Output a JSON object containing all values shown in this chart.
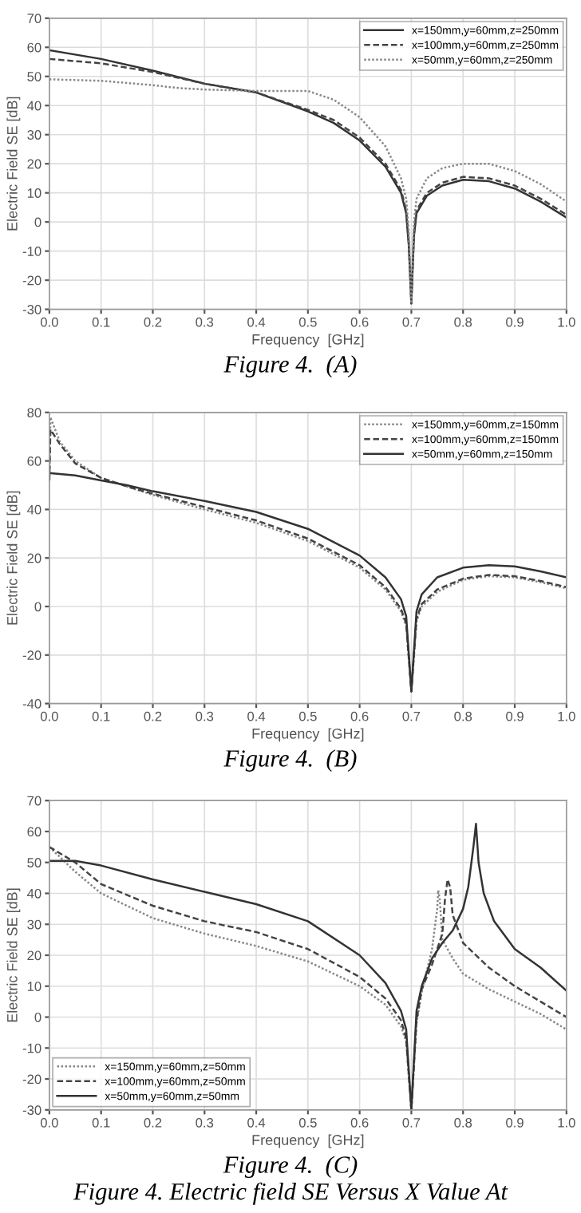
{
  "chart_data": [
    {
      "type": "line",
      "xlabel": "Frequency  [GHz]",
      "ylabel": "Electric Field SE [dB]",
      "annotations": [
        "Figure 4.  (A)"
      ],
      "xlim": [
        0,
        1
      ],
      "ylim": [
        -30,
        70
      ],
      "xticks": [
        {
          "value": 0,
          "label": "0.0"
        },
        {
          "value": 0.1,
          "label": "0.1"
        },
        {
          "value": 0.2,
          "label": "0.2"
        },
        {
          "value": 0.3,
          "label": "0.3"
        },
        {
          "value": 0.4,
          "label": "0.4"
        },
        {
          "value": 0.5,
          "label": "0.5"
        },
        {
          "value": 0.6,
          "label": "0.6"
        },
        {
          "value": 0.7,
          "label": "0.7"
        },
        {
          "value": 0.8,
          "label": "0.8"
        },
        {
          "value": 0.9,
          "label": "0.9"
        },
        {
          "value": 1,
          "label": "1.0"
        }
      ],
      "yticks": [
        -30,
        -20,
        -10,
        0,
        10,
        20,
        30,
        40,
        50,
        60,
        70
      ],
      "grid": true,
      "legend": "top right",
      "marker": "none",
      "series": [
        {
          "name": "x=150mm,y=60mm,z=250mm",
          "color": "#333333",
          "line_style": "solid",
          "x": [
            0,
            0.1,
            0.2,
            0.3,
            0.4,
            0.5,
            0.55,
            0.6,
            0.65,
            0.68,
            0.69,
            0.695,
            0.7,
            0.705,
            0.71,
            0.73,
            0.76,
            0.8,
            0.85,
            0.9,
            0.95,
            1.0
          ],
          "values": [
            59,
            56,
            52,
            47.5,
            44.5,
            38,
            34,
            28,
            19,
            10,
            3,
            -8,
            -28,
            -5,
            3,
            9,
            12.5,
            14.5,
            14,
            11.5,
            7,
            1.5
          ]
        },
        {
          "name": "x=100mm,y=60mm,z=250mm",
          "color": "#444444",
          "line_style": "dashed",
          "x": [
            0,
            0.1,
            0.2,
            0.3,
            0.4,
            0.5,
            0.55,
            0.6,
            0.65,
            0.68,
            0.69,
            0.695,
            0.7,
            0.705,
            0.71,
            0.73,
            0.76,
            0.8,
            0.85,
            0.9,
            0.95,
            1.0
          ],
          "values": [
            56,
            54.5,
            51.5,
            47.5,
            44.5,
            38.5,
            35,
            29,
            20,
            11,
            4,
            -7,
            -28,
            -4,
            4,
            10,
            13.5,
            15.5,
            15,
            12.5,
            8,
            2.5
          ]
        },
        {
          "name": "x=50mm,y=60mm,z=250mm",
          "color": "#888888",
          "line_style": "dotted",
          "x": [
            0,
            0.1,
            0.2,
            0.25,
            0.3,
            0.4,
            0.5,
            0.55,
            0.6,
            0.65,
            0.68,
            0.69,
            0.695,
            0.7,
            0.705,
            0.71,
            0.73,
            0.76,
            0.8,
            0.85,
            0.9,
            0.95,
            1.0
          ],
          "values": [
            49,
            48.5,
            47,
            46,
            45.5,
            45,
            45,
            42,
            36,
            26,
            15,
            8,
            -3,
            -28,
            0,
            8,
            15,
            18.5,
            20,
            20,
            17.5,
            13,
            7
          ]
        }
      ]
    },
    {
      "type": "line",
      "xlabel": "Frequency  [GHz]",
      "ylabel": "Electric Field SE [dB]",
      "annotations": [
        "Figure 4.  (B)"
      ],
      "xlim": [
        0,
        1
      ],
      "ylim": [
        -40,
        80
      ],
      "xticks": [
        {
          "value": 0,
          "label": "0.0"
        },
        {
          "value": 0.1,
          "label": "0.1"
        },
        {
          "value": 0.2,
          "label": "0.2"
        },
        {
          "value": 0.3,
          "label": "0.3"
        },
        {
          "value": 0.4,
          "label": "0.4"
        },
        {
          "value": 0.5,
          "label": "0.5"
        },
        {
          "value": 0.6,
          "label": "0.6"
        },
        {
          "value": 0.7,
          "label": "0.7"
        },
        {
          "value": 0.8,
          "label": "0.8"
        },
        {
          "value": 0.9,
          "label": "0.9"
        },
        {
          "value": 1,
          "label": "1.0"
        }
      ],
      "yticks": [
        -40,
        -20,
        0,
        20,
        40,
        60,
        80
      ],
      "grid": true,
      "legend": "top right",
      "marker": "none",
      "series": [
        {
          "name": "x=150mm,y=60mm,z=150mm",
          "color": "#888888",
          "line_style": "dotted",
          "x": [
            0,
            0.002,
            0.02,
            0.05,
            0.1,
            0.15,
            0.2,
            0.3,
            0.4,
            0.5,
            0.6,
            0.65,
            0.68,
            0.69,
            0.7,
            0.71,
            0.72,
            0.75,
            0.8,
            0.85,
            0.9,
            0.95,
            1.0
          ],
          "values": [
            52,
            78,
            68,
            60,
            53,
            49.5,
            46,
            40,
            34.5,
            27,
            16,
            7,
            -2,
            -8,
            -35,
            -6,
            0,
            6,
            11,
            12.5,
            12,
            10,
            7.5
          ]
        },
        {
          "name": "x=100mm,y=60mm,z=150mm",
          "color": "#444444",
          "line_style": "dashed",
          "x": [
            0,
            0.002,
            0.02,
            0.05,
            0.1,
            0.15,
            0.2,
            0.3,
            0.4,
            0.5,
            0.6,
            0.65,
            0.68,
            0.69,
            0.7,
            0.71,
            0.72,
            0.75,
            0.8,
            0.85,
            0.9,
            0.95,
            1.0
          ],
          "values": [
            52,
            73,
            67,
            59,
            53,
            49.5,
            46.5,
            41,
            35.5,
            28,
            17,
            8,
            -1,
            -7,
            -35,
            -5,
            1,
            7,
            11.5,
            13,
            12.5,
            10.5,
            8
          ]
        },
        {
          "name": "x=50mm,y=60mm,z=150mm",
          "color": "#333333",
          "line_style": "solid",
          "x": [
            0,
            0.05,
            0.1,
            0.15,
            0.2,
            0.3,
            0.4,
            0.5,
            0.6,
            0.65,
            0.68,
            0.69,
            0.7,
            0.71,
            0.72,
            0.75,
            0.8,
            0.85,
            0.9,
            0.95,
            1.0
          ],
          "values": [
            55,
            54,
            52,
            50,
            47.5,
            43.5,
            39,
            32,
            21,
            12,
            3,
            -4,
            -35,
            -2,
            5,
            12,
            16,
            17,
            16.5,
            14.5,
            12
          ]
        }
      ]
    },
    {
      "type": "line",
      "xlabel": "Frequency  [GHz]",
      "ylabel": "Electric Field SE [dB]",
      "annotations": [
        "Figure 4.  (C)",
        "Figure 4. Electric field SE Versus X Value At"
      ],
      "xlim": [
        0,
        1
      ],
      "ylim": [
        -30,
        70
      ],
      "xticks": [
        {
          "value": 0,
          "label": "0.0"
        },
        {
          "value": 0.1,
          "label": "0.1"
        },
        {
          "value": 0.2,
          "label": "0.2"
        },
        {
          "value": 0.3,
          "label": "0.3"
        },
        {
          "value": 0.4,
          "label": "0.4"
        },
        {
          "value": 0.5,
          "label": "0.5"
        },
        {
          "value": 0.6,
          "label": "0.6"
        },
        {
          "value": 0.7,
          "label": "0.7"
        },
        {
          "value": 0.8,
          "label": "0.8"
        },
        {
          "value": 0.9,
          "label": "0.9"
        },
        {
          "value": 1,
          "label": "1.0"
        }
      ],
      "yticks": [
        -30,
        -20,
        -10,
        0,
        10,
        20,
        30,
        40,
        50,
        60,
        70
      ],
      "grid": true,
      "legend": "bottom left",
      "marker": "none",
      "series": [
        {
          "name": "x=150mm,y=60mm,z=50mm",
          "color": "#888888",
          "line_style": "dotted",
          "x": [
            0,
            0.05,
            0.1,
            0.2,
            0.3,
            0.4,
            0.5,
            0.6,
            0.65,
            0.68,
            0.69,
            0.7,
            0.71,
            0.72,
            0.73,
            0.74,
            0.75,
            0.752,
            0.755,
            0.76,
            0.78,
            0.8,
            0.85,
            0.9,
            0.95,
            1.0
          ],
          "values": [
            55,
            47,
            40,
            32,
            27,
            23,
            18,
            10,
            4,
            -3,
            -8,
            -30,
            -2,
            8,
            15,
            22,
            35,
            41,
            38,
            25,
            19,
            14,
            9,
            5,
            1,
            -4
          ]
        },
        {
          "name": "x=100mm,y=60mm,z=50mm",
          "color": "#444444",
          "line_style": "dashed",
          "x": [
            0,
            0.05,
            0.1,
            0.2,
            0.3,
            0.4,
            0.5,
            0.6,
            0.65,
            0.68,
            0.69,
            0.7,
            0.71,
            0.72,
            0.74,
            0.76,
            0.765,
            0.77,
            0.775,
            0.78,
            0.8,
            0.85,
            0.9,
            0.95,
            1.0
          ],
          "values": [
            55,
            50,
            43,
            36,
            31,
            27.5,
            22,
            13,
            6,
            -1,
            -7,
            -30,
            -1,
            9,
            17,
            27,
            38,
            44.5,
            42,
            33,
            24,
            16,
            10,
            5,
            0
          ]
        },
        {
          "name": "x=50mm,y=60mm,z=50mm",
          "color": "#333333",
          "line_style": "solid",
          "x": [
            0,
            0.05,
            0.1,
            0.2,
            0.3,
            0.4,
            0.5,
            0.6,
            0.65,
            0.68,
            0.69,
            0.7,
            0.71,
            0.72,
            0.74,
            0.76,
            0.78,
            0.8,
            0.81,
            0.82,
            0.825,
            0.83,
            0.84,
            0.86,
            0.9,
            0.95,
            1.0
          ],
          "values": [
            50.5,
            50.5,
            49,
            44.5,
            40.5,
            36.5,
            31,
            20,
            11,
            2,
            -4,
            -30,
            2,
            10,
            19,
            24,
            28,
            35,
            42,
            55,
            62.5,
            50,
            40,
            31,
            22,
            16,
            8.5
          ]
        }
      ]
    }
  ]
}
